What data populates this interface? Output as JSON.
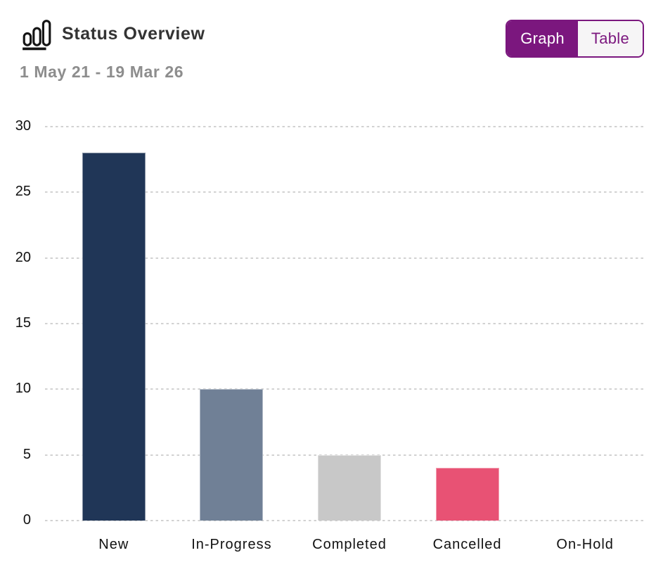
{
  "header": {
    "title": "Status Overview",
    "date_range": "1 May 21 - 19 Mar 26",
    "toggle": {
      "graph_label": "Graph",
      "table_label": "Table",
      "active": "Graph"
    },
    "icon": "bar-chart-icon"
  },
  "colors": {
    "accent_purple": "#7B177E",
    "toggle_inactive_bg": "#f6f5f6",
    "title_text": "#333333",
    "subtitle_text": "#8d8d8d",
    "axis_text": "#111111",
    "gridline": "#d2d2d2",
    "bar_new": "#203657",
    "bar_in_progress": "#708096",
    "bar_completed": "#C8C8C8",
    "bar_cancelled": "#E85274"
  },
  "chart_data": {
    "type": "bar",
    "title": "Status Overview",
    "subtitle": "1 May 21 - 19 Mar 26",
    "categories": [
      "New",
      "In-Progress",
      "Completed",
      "Cancelled",
      "On-Hold"
    ],
    "values": [
      28,
      10,
      5,
      4,
      0
    ],
    "bar_colors": [
      "#203657",
      "#708096",
      "#C8C8C8",
      "#E85274",
      null
    ],
    "xlabel": "",
    "ylabel": "",
    "ylim": [
      0,
      30
    ],
    "yticks": [
      0,
      5,
      10,
      15,
      20,
      25,
      30
    ],
    "grid": "horizontal-dotted",
    "legend": "none"
  }
}
